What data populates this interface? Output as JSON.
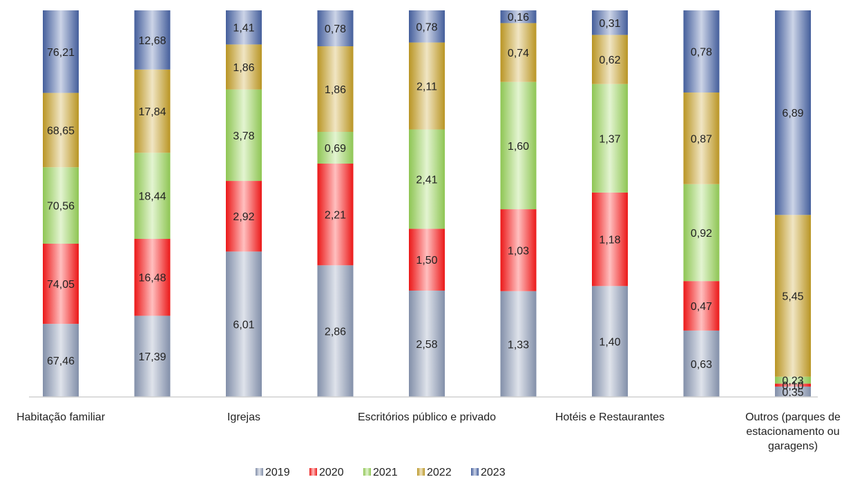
{
  "chart_data": {
    "type": "bar",
    "stacked": true,
    "title": "",
    "xlabel": "",
    "ylabel": "",
    "grid": false,
    "legend_position": "bottom",
    "bar_count": 9,
    "category_labels": [
      {
        "text": "Habitação familiar",
        "under_bar": 0
      },
      {
        "text": "Igrejas",
        "under_bar": 2
      },
      {
        "text": "Escritórios público e privado",
        "under_bar": 4
      },
      {
        "text": "Hotéis e Restaurantes",
        "under_bar": 6
      },
      {
        "text": "Outros (parques de estacionamento ou garagens)",
        "under_bar": 8
      }
    ],
    "series": [
      {
        "name": "2019",
        "color": "#8d9bb8",
        "values": [
          67.46,
          17.39,
          6.01,
          2.86,
          2.58,
          1.33,
          1.4,
          0.63,
          0.35
        ]
      },
      {
        "name": "2020",
        "color": "#ff1a1a",
        "values": [
          74.05,
          16.48,
          2.92,
          2.21,
          1.5,
          1.03,
          1.18,
          0.47,
          0.1
        ]
      },
      {
        "name": "2021",
        "color": "#9ad65a",
        "values": [
          70.56,
          18.44,
          3.78,
          0.69,
          2.41,
          1.6,
          1.37,
          0.92,
          0.23
        ]
      },
      {
        "name": "2022",
        "color": "#c9a227",
        "values": [
          68.65,
          17.84,
          1.86,
          1.86,
          2.11,
          0.74,
          0.62,
          0.87,
          5.45
        ]
      },
      {
        "name": "2023",
        "color": "#4a66a8",
        "values": [
          76.21,
          12.68,
          1.41,
          0.78,
          0.78,
          0.16,
          0.31,
          0.78,
          6.89
        ]
      }
    ],
    "value_labels": [
      [
        "67,46",
        "74,05",
        "70,56",
        "68,65",
        "76,21"
      ],
      [
        "17,39",
        "16,48",
        "18,44",
        "17,84",
        "12,68"
      ],
      [
        "6,01",
        "2,92",
        "3,78",
        "1,86",
        "1,41"
      ],
      [
        "2,86",
        "2,21",
        "0,69",
        "1,86",
        "0,78"
      ],
      [
        "2,58",
        "1,50",
        "2,41",
        "2,11",
        "0,78"
      ],
      [
        "1,33",
        "1,03",
        "1,60",
        "0,74",
        "0,16"
      ],
      [
        "1,40",
        "1,18",
        "1,37",
        "0,62",
        "0,31"
      ],
      [
        "0,63",
        "0,47",
        "0,92",
        "0,87",
        "0,78"
      ],
      [
        "0,35",
        "0,10",
        "0,23",
        "5,45",
        "6,89"
      ]
    ]
  }
}
